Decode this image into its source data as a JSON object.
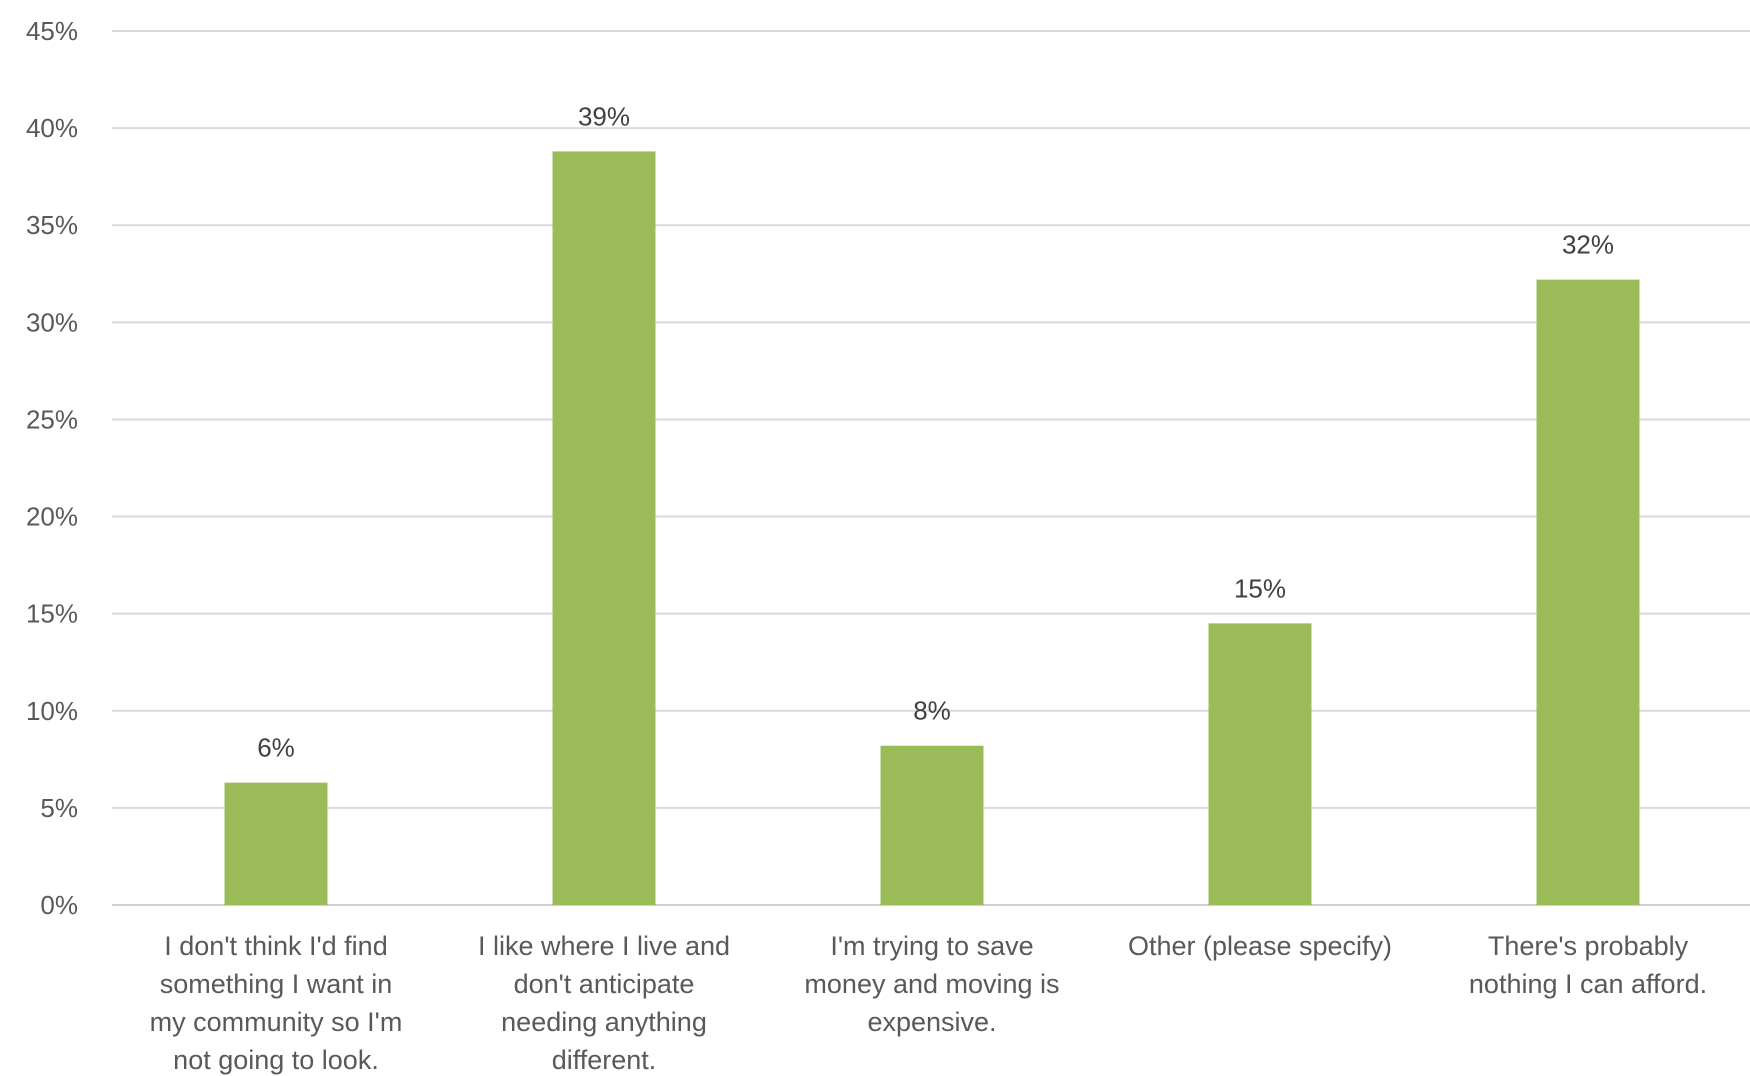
{
  "chart_data": {
    "type": "bar",
    "title": "",
    "xlabel": "",
    "ylabel": "",
    "categories": [
      [
        "I don't think I'd find",
        "something I want in",
        "my community so I'm",
        "not going to look."
      ],
      [
        "I like where I live and",
        "don't anticipate",
        "needing anything",
        "different."
      ],
      [
        "I'm trying to save",
        "money and moving is",
        "expensive."
      ],
      [
        "Other (please specify)"
      ],
      [
        "There's probably",
        "nothing I can afford."
      ]
    ],
    "values": [
      6.3,
      38.8,
      8.2,
      14.5,
      32.2
    ],
    "data_labels": [
      "6%",
      "39%",
      "8%",
      "15%",
      "32%"
    ],
    "ylim": [
      0,
      45
    ],
    "yticks": [
      0,
      5,
      10,
      15,
      20,
      25,
      30,
      35,
      40,
      45
    ],
    "ytick_labels": [
      "0%",
      "5%",
      "10%",
      "15%",
      "20%",
      "25%",
      "30%",
      "35%",
      "40%",
      "45%"
    ],
    "grid": true,
    "legend": "none",
    "bar_color": "#9bbb59"
  }
}
